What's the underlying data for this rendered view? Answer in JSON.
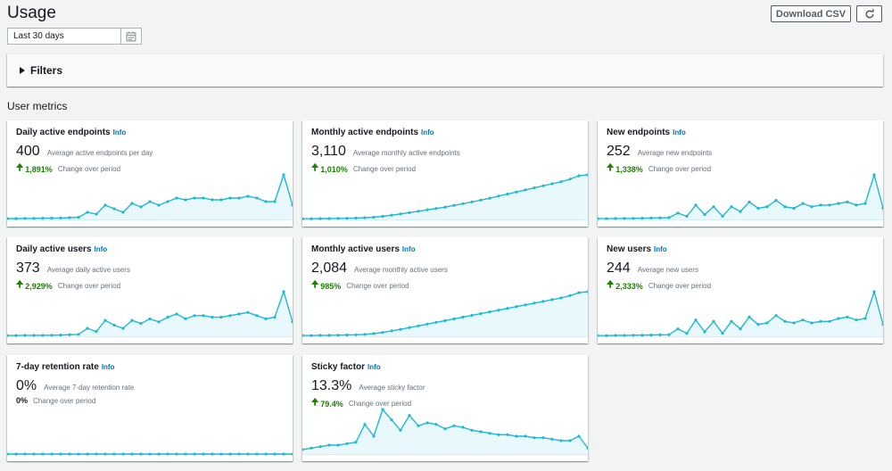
{
  "page": {
    "title": "Usage"
  },
  "toolbar": {
    "download_label": "Download CSV",
    "refresh_icon": "refresh-icon"
  },
  "date_range": {
    "value": "Last 30 days",
    "icon": "calendar-icon"
  },
  "filters": {
    "label": "Filters"
  },
  "section": {
    "title": "User metrics"
  },
  "colors": {
    "line": "#21b8d2",
    "fill": "#e8f8fc",
    "positive": "#1d8102",
    "link": "#0073bb"
  },
  "cards": [
    {
      "title": "Daily active endpoints",
      "info": "Info",
      "value": "400",
      "desc": "Average active endpoints per day",
      "arrow": "🠉",
      "change": "1,891%",
      "change_desc": "Change over period",
      "positive": true,
      "series": [
        0.5,
        0.5,
        0.6,
        0.6,
        0.7,
        0.7,
        0.8,
        1,
        1.2,
        4,
        3,
        8,
        6,
        4,
        9,
        7,
        10,
        8,
        10,
        12,
        11,
        12,
        12,
        11,
        11,
        12,
        12,
        13,
        12,
        10,
        10,
        25,
        8
      ]
    },
    {
      "title": "Monthly active endpoints",
      "info": "Info",
      "value": "3,110",
      "desc": "Average monthly active endpoints",
      "arrow": "🠉",
      "change": "1,010%",
      "change_desc": "Change over period",
      "positive": true,
      "series": [
        0.4,
        0.4,
        0.5,
        0.5,
        0.6,
        0.7,
        0.8,
        1,
        1.3,
        1.8,
        2.5,
        3.2,
        4,
        4.8,
        5.6,
        6.4,
        7.2,
        8.2,
        9.2,
        10.2,
        11.3,
        12.4,
        13.6,
        14.8,
        16,
        17.2,
        18.4,
        19.6,
        20.8,
        22,
        23.5,
        25.5,
        26
      ]
    },
    {
      "title": "New endpoints",
      "info": "Info",
      "value": "252",
      "desc": "Average new endpoints",
      "arrow": "🠉",
      "change": "1,338%",
      "change_desc": "Change over period",
      "positive": true,
      "series": [
        0.5,
        0.5,
        0.6,
        0.6,
        0.7,
        0.8,
        0.9,
        1,
        1.1,
        4,
        2,
        9,
        3,
        8,
        2,
        8,
        5,
        11,
        7,
        8,
        12,
        8,
        7,
        10,
        8,
        9,
        9,
        10,
        11,
        9,
        10,
        28,
        7
      ]
    },
    {
      "title": "Daily active users",
      "info": "Info",
      "value": "373",
      "desc": "Average daily active users",
      "arrow": "🠉",
      "change": "2,929%",
      "change_desc": "Change over period",
      "positive": true,
      "series": [
        0.5,
        0.5,
        0.6,
        0.6,
        0.7,
        0.7,
        0.8,
        1,
        1.2,
        5,
        3,
        10,
        7,
        5,
        10,
        8,
        11,
        9,
        12,
        14,
        11,
        13,
        13,
        12,
        12,
        13,
        14,
        15,
        13,
        11,
        12,
        28,
        9
      ]
    },
    {
      "title": "Monthly active users",
      "info": "Info",
      "value": "2,084",
      "desc": "Average monthly active users",
      "arrow": "🠉",
      "change": "985%",
      "change_desc": "Change over period",
      "positive": true,
      "series": [
        0.4,
        0.4,
        0.5,
        0.5,
        0.6,
        0.7,
        0.8,
        1,
        1.4,
        2,
        2.8,
        3.6,
        4.5,
        5.4,
        6.3,
        7.2,
        8.1,
        9,
        9.9,
        10.8,
        11.7,
        12.6,
        13.5,
        14.4,
        15.3,
        16.2,
        17.1,
        18,
        18.9,
        19.8,
        21,
        22.5,
        23
      ]
    },
    {
      "title": "New users",
      "info": "Info",
      "value": "244",
      "desc": "Average new users",
      "arrow": "🠉",
      "change": "2,333%",
      "change_desc": "Change over period",
      "positive": true,
      "series": [
        0.5,
        0.5,
        0.6,
        0.6,
        0.7,
        0.8,
        0.9,
        1,
        1.1,
        5,
        2,
        11,
        3,
        10,
        2,
        10,
        5,
        13,
        8,
        9,
        14,
        10,
        9,
        11,
        9,
        10,
        10,
        12,
        13,
        11,
        12,
        30,
        8
      ]
    },
    {
      "title": "7-day retention rate",
      "info": "Info",
      "value": "0%",
      "desc": "Average 7-day retention rate",
      "arrow": "",
      "change": "0%",
      "change_desc": "Change over period",
      "positive": false,
      "series": [
        0,
        0,
        0,
        0,
        0,
        0,
        0,
        0,
        0,
        0,
        0,
        0,
        0,
        0,
        0,
        0,
        0,
        0,
        0,
        0,
        0,
        0,
        0,
        0,
        0,
        0,
        0,
        0,
        0,
        0,
        0,
        0,
        0
      ]
    },
    {
      "title": "Sticky factor",
      "info": "Info",
      "value": "13.3%",
      "desc": "Average sticky factor",
      "arrow": "🠉",
      "change": "79.4%",
      "change_desc": "Change over period",
      "positive": true,
      "series": [
        3,
        4,
        5,
        6,
        6,
        7,
        8,
        20,
        12,
        30,
        23,
        16,
        26,
        19,
        21,
        20,
        17,
        19,
        18,
        16,
        15,
        14,
        13,
        13,
        12,
        12,
        11,
        11,
        10,
        9,
        9,
        12,
        4
      ]
    }
  ]
}
